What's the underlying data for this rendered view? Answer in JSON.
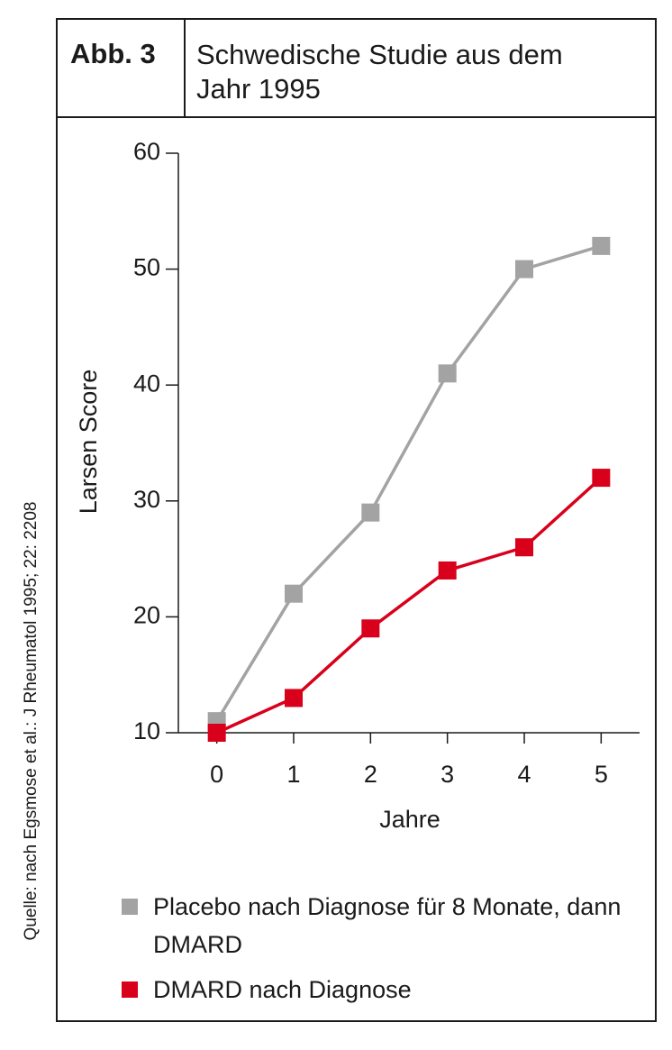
{
  "chart_data": {
    "type": "line",
    "figure_label": "Abb. 3",
    "title": "Schwedische Studie aus dem Jahr 1995",
    "source": "Quelle: nach Egsmose et al.: J Rheumatol 1995; 22: 2208",
    "x_label": "Jahre",
    "y_label": "Larsen Score",
    "x": [
      0,
      1,
      2,
      3,
      4,
      5
    ],
    "series": [
      {
        "name": "Placebo nach Diagnose für 8 Monate, dann DMARD",
        "color": "#a3a3a3",
        "values": [
          11,
          22,
          29,
          41,
          50,
          52
        ]
      },
      {
        "name": "DMARD nach Diagnose",
        "color": "#d9001b",
        "values": [
          10,
          13,
          19,
          24,
          26,
          32
        ]
      }
    ],
    "xlim": [
      -0.5,
      5.5
    ],
    "xticks": [
      0,
      1,
      2,
      3,
      4,
      5
    ],
    "ylim": [
      10,
      60
    ],
    "yticks": [
      10,
      20,
      30,
      40,
      50,
      60
    ],
    "grid": false
  }
}
